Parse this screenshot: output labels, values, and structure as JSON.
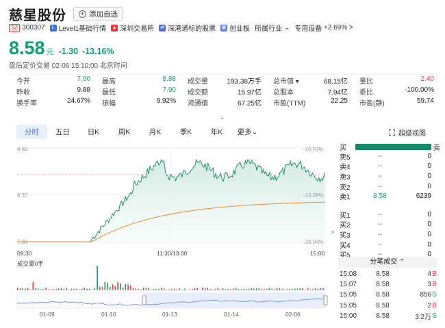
{
  "header": {
    "name": "慈星股份",
    "add_label": "添加自选"
  },
  "tags": {
    "market": "SZ",
    "code": "300307",
    "items": [
      "Level1基础行情",
      "深圳交易所",
      "深港通标的股票",
      "创业板"
    ],
    "industry": "所属行业",
    "sector": "专用设备",
    "sector_change": "+2.69%",
    "chevron": ">"
  },
  "quote": {
    "price": "8.58",
    "unit": "元",
    "change": "-1.30",
    "change_pct": "-13.16%",
    "after_hours": "盘后定价交易 02-06 15:10:00 北京时间"
  },
  "stats": [
    [
      {
        "l": "今开",
        "v": "7.90",
        "c": "g"
      },
      {
        "l": "最高",
        "v": "8.88",
        "c": "g"
      },
      {
        "l": "成交量",
        "v": "193.38万手",
        "c": ""
      },
      {
        "l": "总市值 ▾",
        "v": "68.15亿",
        "c": ""
      },
      {
        "l": "量比",
        "v": "2.40",
        "c": "r"
      }
    ],
    [
      {
        "l": "昨收",
        "v": "9.88",
        "c": ""
      },
      {
        "l": "最低",
        "v": "7.90",
        "c": "g"
      },
      {
        "l": "成交额",
        "v": "15.97亿",
        "c": ""
      },
      {
        "l": "总股本",
        "v": "7.94亿",
        "c": ""
      },
      {
        "l": "委比",
        "v": "-100.00%",
        "c": ""
      }
    ],
    [
      {
        "l": "换手率",
        "v": "24.67%",
        "c": ""
      },
      {
        "l": "振幅",
        "v": "9.92%",
        "c": ""
      },
      {
        "l": "流通值",
        "v": "67.25亿",
        "c": ""
      },
      {
        "l": "市盈(TTM)",
        "v": "22.25",
        "c": ""
      },
      {
        "l": "市盈(静)",
        "v": "59.74",
        "c": ""
      }
    ]
  ],
  "expand_icon": "chevron-down-icon",
  "expand_glyph": "⌄",
  "tabs": [
    "分时",
    "五日",
    "日K",
    "周K",
    "月K",
    "季K",
    "年K",
    "更多"
  ],
  "more_glyph": "⌄",
  "super_view": "超级视图",
  "chart": {
    "price_ticks": {
      "top": "8.84",
      "mid": "8.37",
      "bottom": "7.90"
    },
    "pct_ticks": {
      "top": "-10.53%",
      "mid": "-15.29%",
      "bottom": "-20.04%"
    },
    "time_ticks": [
      "09:30",
      "11:30/13:00",
      "15:00"
    ],
    "volume_label": "成交量0手",
    "nav_dates": [
      "01-09",
      "01-10",
      "01-13",
      "01-14",
      "02-06"
    ],
    "nav_arrow": ">"
  },
  "chart_data": {
    "type": "line",
    "series": [],
    "y_range": [
      7.9,
      8.84
    ]
  },
  "orderbook": {
    "header": "买",
    "sell_tag": "卖",
    "asks": [
      {
        "label": "卖5",
        "price": "--",
        "vol": "0"
      },
      {
        "label": "卖4",
        "price": "--",
        "vol": "0"
      },
      {
        "label": "卖3",
        "price": "--",
        "vol": "0"
      },
      {
        "label": "卖2",
        "price": "--",
        "vol": "0"
      },
      {
        "label": "卖1",
        "price": "8.58",
        "vol": "6239"
      }
    ],
    "bids": [
      {
        "label": "买1",
        "price": "--",
        "vol": "0"
      },
      {
        "label": "买2",
        "price": "--",
        "vol": "0"
      },
      {
        "label": "买3",
        "price": "--",
        "vol": "0"
      },
      {
        "label": "买4",
        "price": "--",
        "vol": "0"
      },
      {
        "label": "买5",
        "price": "--",
        "vol": "0"
      }
    ]
  },
  "trades": {
    "header": "分笔成交 ⌃",
    "rows": [
      {
        "t": "15:08",
        "p": "8.58",
        "q": "4",
        "d": "B",
        "c": "r"
      },
      {
        "t": "15:07",
        "p": "8.58",
        "q": "3",
        "d": "B",
        "c": "r"
      },
      {
        "t": "15:05",
        "p": "8.58",
        "q": "856",
        "d": "S",
        "c": "g"
      },
      {
        "t": "15:05",
        "p": "8.58",
        "q": "2",
        "d": "B",
        "c": "r"
      },
      {
        "t": "15:00",
        "p": "8.58",
        "q": "3.2万",
        "d": "S",
        "c": "g"
      }
    ]
  }
}
